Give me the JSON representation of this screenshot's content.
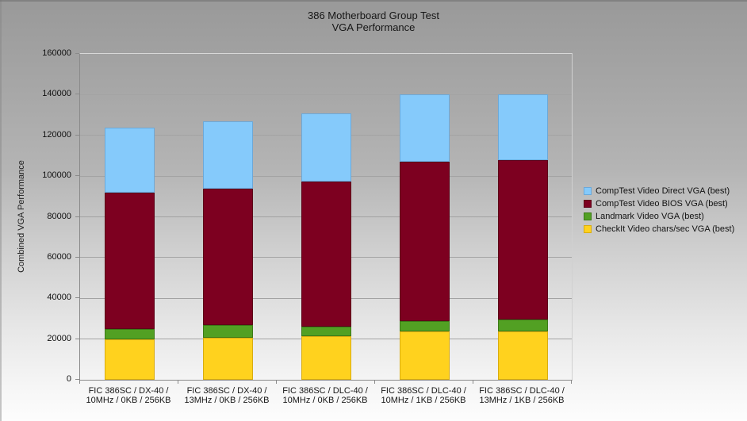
{
  "chart_data": {
    "type": "bar",
    "stacked": true,
    "title": "386 Motherboard Group Test",
    "subtitle": "VGA Performance",
    "ylabel": "Combined VGA Performance",
    "xlabel": "",
    "ylim": [
      0,
      160000
    ],
    "ytick_step": 20000,
    "grid": true,
    "legend_position": "right",
    "categories": [
      [
        "FIC 386SC / DX-40 /",
        "10MHz / 0KB / 256KB"
      ],
      [
        "FIC 386SC / DX-40 /",
        "13MHz / 0KB / 256KB"
      ],
      [
        "FIC 386SC / DLC-40 /",
        "10MHz / 0KB / 256KB"
      ],
      [
        "FIC 386SC / DLC-40 /",
        "10MHz / 1KB / 256KB"
      ],
      [
        "FIC 386SC / DLC-40 /",
        "13MHz / 1KB / 256KB"
      ]
    ],
    "series": [
      {
        "name": "CheckIt Video chars/sec VGA (best)",
        "color": "#FFD21E",
        "border_color": "#D9AC10",
        "values": [
          20000,
          20700,
          21400,
          23800,
          23900
        ]
      },
      {
        "name": "Landmark Video VGA (best)",
        "color": "#52A023",
        "border_color": "#3C7A17",
        "values": [
          5000,
          6000,
          4500,
          5100,
          5600
        ]
      },
      {
        "name": "CompTest Video BIOS VGA (best)",
        "color": "#7D0020",
        "border_color": "#5C0017",
        "values": [
          67000,
          67300,
          71600,
          78100,
          78500
        ]
      },
      {
        "name": "CompTest Video Direct VGA (best)",
        "color": "#85CAFB",
        "border_color": "#6CA9D9",
        "values": [
          32000,
          33000,
          33500,
          33000,
          32000
        ]
      }
    ],
    "stack_totals": [
      124000,
      127000,
      131000,
      140000,
      140000
    ],
    "legend_order": [
      "CompTest Video Direct VGA (best)",
      "CompTest Video BIOS VGA (best)",
      "Landmark Video VGA (best)",
      "CheckIt Video chars/sec VGA (best)"
    ]
  }
}
